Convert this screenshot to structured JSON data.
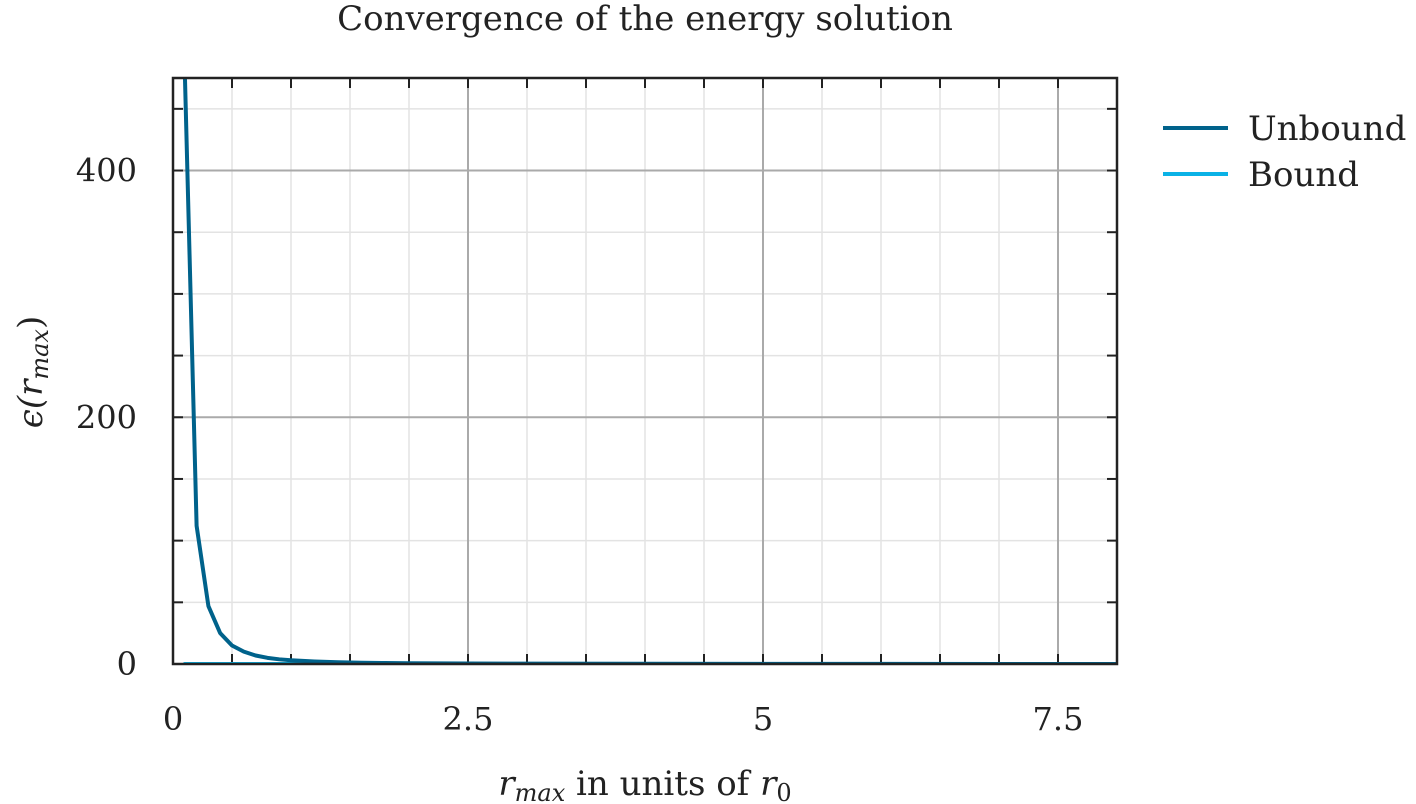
{
  "chart_data": {
    "type": "line",
    "title": "Convergence of the energy solution",
    "xlabel": {
      "main": "r",
      "sub": "max",
      "rest": " in units of ",
      "main2": "r",
      "sub2": "0"
    },
    "ylabel": {
      "main": "ϵ(r",
      "sub": "max",
      "close": ")"
    },
    "xlim": [
      0,
      8
    ],
    "ylim": [
      0,
      475
    ],
    "x_major_ticks": [
      0,
      2.5,
      5,
      7.5
    ],
    "x_tick_labels": [
      "0",
      "2.5",
      "5",
      "7.5"
    ],
    "x_minor_step": 0.5,
    "y_major_ticks": [
      0,
      200,
      400
    ],
    "y_tick_labels": [
      "0",
      "200",
      "400"
    ],
    "y_minor_step": 50,
    "grid": true,
    "legend_position": "outside-right",
    "series": [
      {
        "name": "Unbound",
        "color": "#00628b",
        "x": [
          0.1,
          0.2,
          0.3,
          0.4,
          0.5,
          0.6,
          0.7,
          0.8,
          0.9,
          1.0,
          1.2,
          1.4,
          1.6,
          1.8,
          2.0,
          2.5,
          3.0,
          4.0,
          5.0,
          6.0,
          7.0,
          8.0
        ],
        "y": [
          480,
          112,
          47,
          25,
          15,
          10,
          6.9,
          5.0,
          3.8,
          3.0,
          2.0,
          1.4,
          1.0,
          0.8,
          0.6,
          0.4,
          0.3,
          0.15,
          0.1,
          0.07,
          0.05,
          0.04
        ]
      },
      {
        "name": "Bound",
        "color": "#0ab2e6",
        "x": [
          0.1,
          0.5,
          1.0,
          2.0,
          3.0,
          4.0,
          5.0,
          6.0,
          7.0,
          8.0
        ],
        "y": [
          0,
          0,
          0,
          0,
          0,
          0,
          0,
          0,
          0,
          0
        ]
      }
    ]
  }
}
